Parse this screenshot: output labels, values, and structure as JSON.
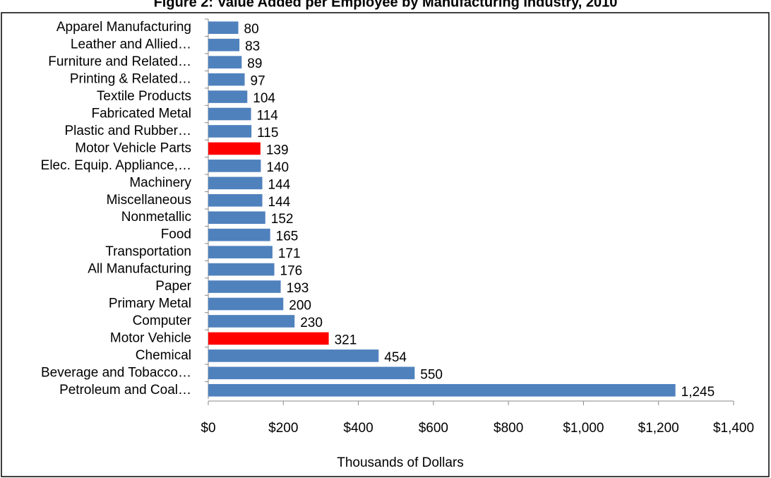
{
  "chart_data": {
    "type": "bar",
    "orientation": "horizontal",
    "title": "Figure 2: Value Added per Employee by Manufacturing Industry, 2010",
    "categories": [
      "Apparel Manufacturing",
      "Leather and Allied…",
      "Furniture and Related…",
      "Printing & Related…",
      "Textile Products",
      "Fabricated Metal",
      "Plastic and Rubber…",
      "Motor Vehicle Parts",
      "Elec. Equip. Appliance,…",
      "Machinery",
      "Miscellaneous",
      "Nonmetallic",
      "Food",
      "Transportation",
      "All Manufacturing",
      "Paper",
      "Primary Metal",
      "Computer",
      "Motor Vehicle",
      "Chemical",
      "Beverage and Tobacco…",
      "Petroleum and Coal…"
    ],
    "values": [
      80,
      83,
      89,
      97,
      104,
      114,
      115,
      139,
      140,
      144,
      144,
      152,
      165,
      171,
      176,
      193,
      200,
      230,
      321,
      454,
      550,
      1245
    ],
    "value_labels": [
      "80",
      "83",
      "89",
      "97",
      "104",
      "114",
      "115",
      "139",
      "140",
      "144",
      "144",
      "152",
      "165",
      "171",
      "176",
      "193",
      "200",
      "230",
      "321",
      "454",
      "550",
      "1,245"
    ],
    "colors": [
      "#4f81bd",
      "#4f81bd",
      "#4f81bd",
      "#4f81bd",
      "#4f81bd",
      "#4f81bd",
      "#4f81bd",
      "#ff0000",
      "#4f81bd",
      "#4f81bd",
      "#4f81bd",
      "#4f81bd",
      "#4f81bd",
      "#4f81bd",
      "#4f81bd",
      "#4f81bd",
      "#4f81bd",
      "#4f81bd",
      "#ff0000",
      "#4f81bd",
      "#4f81bd",
      "#4f81bd"
    ],
    "xlabel": "Thousands of Dollars",
    "xlim": [
      0,
      1400
    ],
    "xticks": [
      {
        "value": 0,
        "label": "$0"
      },
      {
        "value": 200,
        "label": "$200"
      },
      {
        "value": 400,
        "label": "$400"
      },
      {
        "value": 600,
        "label": "$600"
      },
      {
        "value": 800,
        "label": "$800"
      },
      {
        "value": 1000,
        "label": "$1,000"
      },
      {
        "value": 1200,
        "label": "$1,200"
      },
      {
        "value": 1400,
        "label": "$1,400"
      }
    ]
  }
}
